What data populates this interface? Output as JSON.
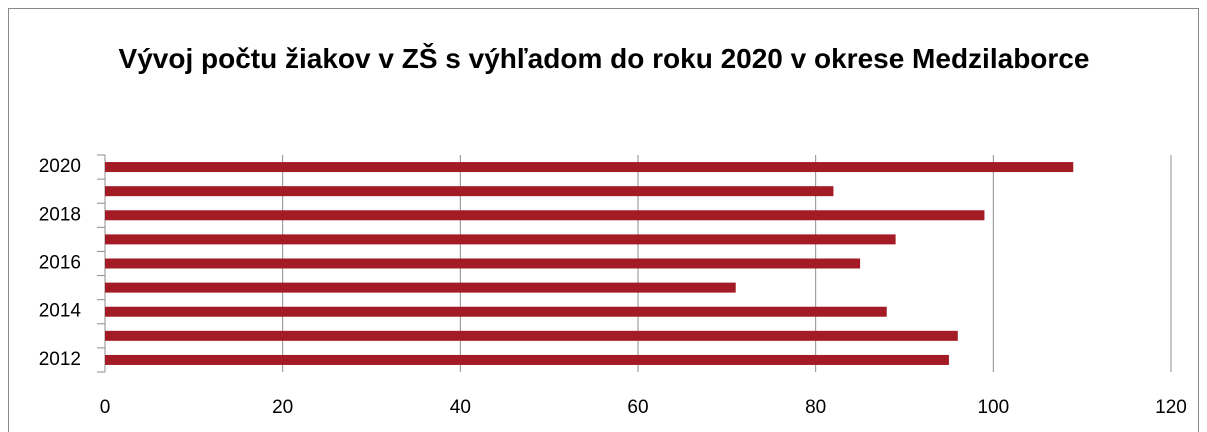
{
  "chart_data": {
    "type": "bar",
    "orientation": "horizontal",
    "title": "Vývoj počtu žiakov v ZŠ s výhľadom do roku 2020 v okrese Medzilaborce",
    "categories": [
      "2012",
      null,
      "2014",
      null,
      "2016",
      null,
      "2018",
      null,
      "2020"
    ],
    "values": [
      95,
      96,
      88,
      71,
      85,
      89,
      99,
      82,
      109
    ],
    "color": "#a31b24",
    "xlim": [
      0,
      120
    ],
    "xticks": [
      0,
      20,
      40,
      60,
      80,
      100,
      120
    ],
    "grid": true
  }
}
